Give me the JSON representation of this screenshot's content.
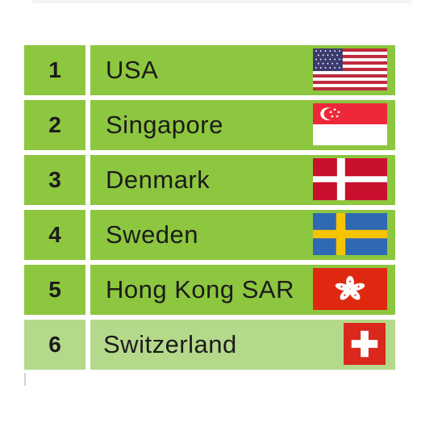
{
  "colors": {
    "row_green": "#8dc63f",
    "row_light_green": "#b5d98b",
    "divider": "#ffffff"
  },
  "ranking": [
    {
      "rank": "1",
      "country": "USA",
      "flag_icon": "usa-flag-icon"
    },
    {
      "rank": "2",
      "country": "Singapore",
      "flag_icon": "singapore-flag-icon"
    },
    {
      "rank": "3",
      "country": "Denmark",
      "flag_icon": "denmark-flag-icon"
    },
    {
      "rank": "4",
      "country": "Sweden",
      "flag_icon": "sweden-flag-icon"
    },
    {
      "rank": "5",
      "country": "Hong Kong SAR",
      "flag_icon": "hong-kong-flag-icon"
    },
    {
      "rank": "6",
      "country": "Switzerland",
      "flag_icon": "switzerland-flag-icon"
    }
  ]
}
